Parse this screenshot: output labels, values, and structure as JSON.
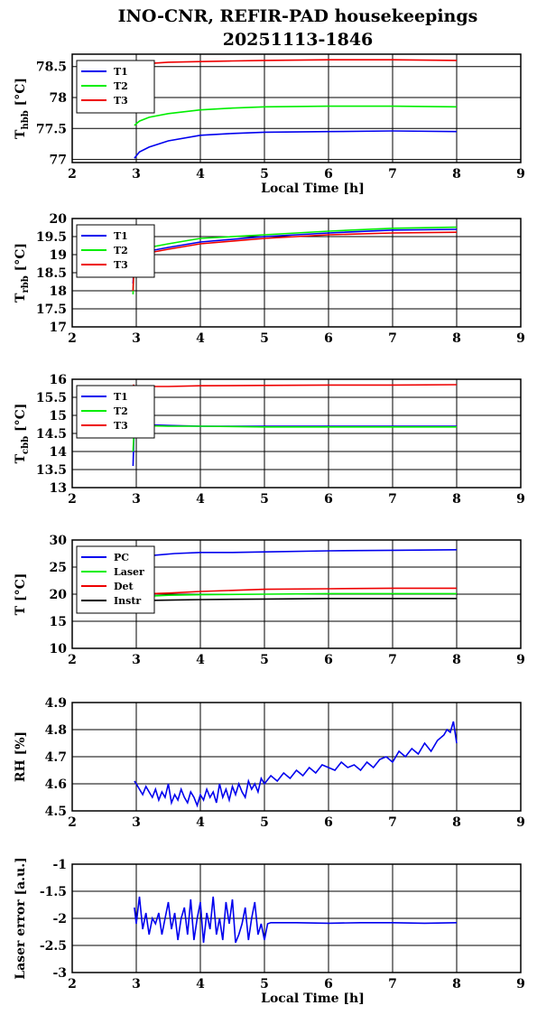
{
  "title_line1": "INO-CNR, REFIR-PAD housekeepings",
  "title_line2": "20251113-1846",
  "chart_data": [
    {
      "type": "line",
      "ylabel": "T",
      "ylabel_sub": "hbb",
      "ylabel_unit": "[°C]",
      "xlabel": "Local Time [h]",
      "xlim": [
        2,
        9
      ],
      "ylim": [
        76.95,
        78.7
      ],
      "yticks": [
        77,
        77.5,
        78,
        78.5
      ],
      "ytick_labels": [
        "77",
        "77.5",
        "78",
        "78.5"
      ],
      "xticks": [
        2,
        3,
        4,
        5,
        6,
        7,
        8,
        9
      ],
      "xtick_labels": [
        "2",
        "3",
        "4",
        "5",
        "6",
        "7",
        "8",
        "9"
      ],
      "legend": "top-left",
      "series": [
        {
          "name": "T1",
          "color": "#0000ee",
          "x": [
            2.97,
            3.05,
            3.2,
            3.5,
            4,
            4.5,
            5,
            6,
            7,
            8
          ],
          "y": [
            77.02,
            77.12,
            77.2,
            77.3,
            77.39,
            77.42,
            77.44,
            77.45,
            77.46,
            77.45
          ]
        },
        {
          "name": "T2",
          "color": "#00ee00",
          "x": [
            2.97,
            3.05,
            3.2,
            3.5,
            4,
            4.5,
            5,
            6,
            7,
            8
          ],
          "y": [
            77.55,
            77.62,
            77.68,
            77.74,
            77.8,
            77.83,
            77.85,
            77.86,
            77.86,
            77.85
          ]
        },
        {
          "name": "T3",
          "color": "#ee0000",
          "x": [
            2.97,
            3.05,
            3.2,
            3.5,
            4,
            4.5,
            5,
            6,
            7,
            8
          ],
          "y": [
            78.48,
            78.52,
            78.55,
            78.57,
            78.58,
            78.59,
            78.6,
            78.61,
            78.61,
            78.6
          ]
        }
      ]
    },
    {
      "type": "line",
      "ylabel": "T",
      "ylabel_sub": "rbb",
      "ylabel_unit": "[°C]",
      "xlabel": "",
      "xlim": [
        2,
        9
      ],
      "ylim": [
        17,
        20
      ],
      "yticks": [
        17,
        17.5,
        18,
        18.5,
        19,
        19.5,
        20
      ],
      "ytick_labels": [
        "17",
        "17.5",
        "18",
        "18.5",
        "19",
        "19.5",
        "20"
      ],
      "xticks": [
        2,
        3,
        4,
        5,
        6,
        7,
        8,
        9
      ],
      "xtick_labels": [
        "2",
        "3",
        "4",
        "5",
        "6",
        "7",
        "8",
        "9"
      ],
      "legend": "top-left",
      "series": [
        {
          "name": "T1",
          "color": "#0000ee",
          "x": [
            2.95,
            2.97,
            3.0,
            3.2,
            3.5,
            4,
            5,
            6,
            7,
            8
          ],
          "y": [
            18.2,
            19.0,
            19.05,
            19.1,
            19.2,
            19.35,
            19.5,
            19.6,
            19.68,
            19.7
          ]
        },
        {
          "name": "T2",
          "color": "#00ee00",
          "x": [
            2.95,
            2.97,
            3.0,
            3.2,
            3.5,
            4,
            5,
            6,
            7,
            8
          ],
          "y": [
            17.9,
            19.1,
            19.15,
            19.2,
            19.3,
            19.45,
            19.55,
            19.65,
            19.73,
            19.76
          ]
        },
        {
          "name": "T3",
          "color": "#ee0000",
          "x": [
            2.95,
            2.97,
            3.0,
            3.2,
            3.5,
            4,
            5,
            6,
            7,
            8
          ],
          "y": [
            18.0,
            19.0,
            19.02,
            19.05,
            19.15,
            19.3,
            19.45,
            19.55,
            19.6,
            19.62
          ]
        }
      ]
    },
    {
      "type": "line",
      "ylabel": "T",
      "ylabel_sub": "cbb",
      "ylabel_unit": "[°C]",
      "xlabel": "",
      "xlim": [
        2,
        9
      ],
      "ylim": [
        13,
        16
      ],
      "yticks": [
        13,
        13.5,
        14,
        14.5,
        15,
        15.5,
        16
      ],
      "ytick_labels": [
        "13",
        "13.5",
        "14",
        "14.5",
        "15",
        "15.5",
        "16"
      ],
      "xticks": [
        2,
        3,
        4,
        5,
        6,
        7,
        8,
        9
      ],
      "xtick_labels": [
        "2",
        "3",
        "4",
        "5",
        "6",
        "7",
        "8",
        "9"
      ],
      "legend": "top-left",
      "series": [
        {
          "name": "T1",
          "color": "#0000ee",
          "x": [
            2.95,
            2.97,
            3.0,
            3.5,
            4,
            5,
            6,
            7,
            8
          ],
          "y": [
            13.6,
            14.8,
            14.75,
            14.72,
            14.7,
            14.7,
            14.7,
            14.7,
            14.7
          ]
        },
        {
          "name": "T2",
          "color": "#00ee00",
          "x": [
            2.95,
            2.97,
            3.0,
            3.5,
            4,
            5,
            6,
            7,
            8
          ],
          "y": [
            14.0,
            14.75,
            14.72,
            14.7,
            14.7,
            14.68,
            14.68,
            14.68,
            14.68
          ]
        },
        {
          "name": "T3",
          "color": "#ee0000",
          "x": [
            2.95,
            2.97,
            3.0,
            3.5,
            4,
            5,
            6,
            7,
            8
          ],
          "y": [
            15.85,
            15.82,
            15.8,
            15.8,
            15.82,
            15.83,
            15.84,
            15.84,
            15.85
          ]
        }
      ]
    },
    {
      "type": "line",
      "ylabel": "T [°C]",
      "ylabel_sub": "",
      "ylabel_unit": "",
      "xlabel": "",
      "xlim": [
        2,
        9
      ],
      "ylim": [
        10,
        30
      ],
      "yticks": [
        10,
        15,
        20,
        25,
        30
      ],
      "ytick_labels": [
        "10",
        "15",
        "20",
        "25",
        "30"
      ],
      "xticks": [
        2,
        3,
        4,
        5,
        6,
        7,
        8,
        9
      ],
      "xtick_labels": [
        "2",
        "3",
        "4",
        "5",
        "6",
        "7",
        "8",
        "9"
      ],
      "legend": "top-left",
      "series": [
        {
          "name": "PC",
          "color": "#0000ee",
          "x": [
            2.97,
            3.1,
            3.3,
            3.6,
            4,
            4.5,
            5,
            6,
            7,
            8
          ],
          "y": [
            26.5,
            26.9,
            27.2,
            27.5,
            27.7,
            27.7,
            27.8,
            28.0,
            28.1,
            28.2
          ]
        },
        {
          "name": "Laser",
          "color": "#00ee00",
          "x": [
            2.97,
            3.5,
            4,
            5,
            6,
            7,
            8
          ],
          "y": [
            19.5,
            19.8,
            19.9,
            20.0,
            20.1,
            20.1,
            20.1
          ]
        },
        {
          "name": "Det",
          "color": "#ee0000",
          "x": [
            2.97,
            3.5,
            4,
            4.5,
            5,
            6,
            7,
            8
          ],
          "y": [
            20.0,
            20.2,
            20.5,
            20.7,
            20.9,
            21.0,
            21.1,
            21.1
          ]
        },
        {
          "name": "Instr",
          "color": "#000000",
          "x": [
            2.97,
            3.5,
            4,
            5,
            6,
            7,
            8
          ],
          "y": [
            18.8,
            18.9,
            19.0,
            19.1,
            19.2,
            19.2,
            19.2
          ]
        }
      ]
    },
    {
      "type": "line",
      "ylabel": "RH [%]",
      "ylabel_sub": "",
      "ylabel_unit": "",
      "xlabel": "",
      "xlim": [
        2,
        9
      ],
      "ylim": [
        4.5,
        4.9
      ],
      "yticks": [
        4.5,
        4.6,
        4.7,
        4.8,
        4.9
      ],
      "ytick_labels": [
        "4.5",
        "4.6",
        "4.7",
        "4.8",
        "4.9"
      ],
      "xticks": [
        2,
        3,
        4,
        5,
        6,
        7,
        8,
        9
      ],
      "xtick_labels": [
        "2",
        "3",
        "4",
        "5",
        "6",
        "7",
        "8",
        "9"
      ],
      "legend": "none",
      "series": [
        {
          "color": "#0000ee",
          "x": [
            2.97,
            3.0,
            3.05,
            3.1,
            3.15,
            3.2,
            3.25,
            3.3,
            3.35,
            3.4,
            3.45,
            3.5,
            3.55,
            3.6,
            3.65,
            3.7,
            3.75,
            3.8,
            3.85,
            3.9,
            3.95,
            4.0,
            4.05,
            4.1,
            4.15,
            4.2,
            4.25,
            4.3,
            4.35,
            4.4,
            4.45,
            4.5,
            4.55,
            4.6,
            4.65,
            4.7,
            4.75,
            4.8,
            4.85,
            4.9,
            4.95,
            5.0,
            5.1,
            5.2,
            5.3,
            5.4,
            5.5,
            5.6,
            5.7,
            5.8,
            5.9,
            6.0,
            6.1,
            6.2,
            6.3,
            6.4,
            6.5,
            6.6,
            6.7,
            6.8,
            6.9,
            7.0,
            7.1,
            7.2,
            7.3,
            7.4,
            7.5,
            7.6,
            7.7,
            7.8,
            7.85,
            7.9,
            7.95,
            8.0
          ],
          "y": [
            4.61,
            4.6,
            4.58,
            4.56,
            4.59,
            4.57,
            4.55,
            4.58,
            4.54,
            4.57,
            4.55,
            4.6,
            4.53,
            4.56,
            4.54,
            4.58,
            4.55,
            4.53,
            4.57,
            4.55,
            4.52,
            4.56,
            4.54,
            4.58,
            4.55,
            4.57,
            4.53,
            4.6,
            4.55,
            4.58,
            4.54,
            4.59,
            4.56,
            4.6,
            4.57,
            4.55,
            4.61,
            4.58,
            4.6,
            4.57,
            4.62,
            4.6,
            4.63,
            4.61,
            4.64,
            4.62,
            4.65,
            4.63,
            4.66,
            4.64,
            4.67,
            4.66,
            4.65,
            4.68,
            4.66,
            4.67,
            4.65,
            4.68,
            4.66,
            4.69,
            4.7,
            4.68,
            4.72,
            4.7,
            4.73,
            4.71,
            4.75,
            4.72,
            4.76,
            4.78,
            4.8,
            4.79,
            4.83,
            4.75
          ]
        }
      ]
    },
    {
      "type": "line",
      "ylabel": "Laser error [a.u.]",
      "ylabel_sub": "",
      "ylabel_unit": "",
      "xlabel": "Local Time [h]",
      "xlim": [
        2,
        9
      ],
      "ylim": [
        -3,
        -1
      ],
      "yticks": [
        -3,
        -2.5,
        -2,
        -1.5,
        -1
      ],
      "ytick_labels": [
        "-3",
        "-2.5",
        "-2",
        "-1.5",
        "-1"
      ],
      "xticks": [
        2,
        3,
        4,
        5,
        6,
        7,
        8,
        9
      ],
      "xtick_labels": [
        "2",
        "3",
        "4",
        "5",
        "6",
        "7",
        "8",
        "9"
      ],
      "legend": "none",
      "series": [
        {
          "color": "#0000ee",
          "x": [
            2.97,
            3.0,
            3.05,
            3.1,
            3.15,
            3.2,
            3.25,
            3.3,
            3.35,
            3.4,
            3.45,
            3.5,
            3.55,
            3.6,
            3.65,
            3.7,
            3.75,
            3.8,
            3.85,
            3.9,
            3.95,
            4.0,
            4.05,
            4.1,
            4.15,
            4.2,
            4.25,
            4.3,
            4.35,
            4.4,
            4.45,
            4.5,
            4.55,
            4.6,
            4.65,
            4.7,
            4.75,
            4.8,
            4.85,
            4.9,
            4.95,
            5.0,
            5.05,
            5.1,
            5.5,
            6.0,
            6.5,
            7.0,
            7.5,
            8.0
          ],
          "y": [
            -1.8,
            -2.1,
            -1.6,
            -2.2,
            -1.9,
            -2.3,
            -2.0,
            -2.1,
            -1.9,
            -2.3,
            -2.0,
            -1.7,
            -2.2,
            -1.9,
            -2.4,
            -2.0,
            -1.8,
            -2.3,
            -1.65,
            -2.4,
            -2.0,
            -1.7,
            -2.45,
            -1.9,
            -2.2,
            -1.6,
            -2.3,
            -2.0,
            -2.4,
            -1.7,
            -2.1,
            -1.65,
            -2.45,
            -2.3,
            -2.1,
            -1.8,
            -2.4,
            -2.0,
            -1.7,
            -2.3,
            -2.1,
            -2.4,
            -2.1,
            -2.08,
            -2.08,
            -2.09,
            -2.08,
            -2.08,
            -2.09,
            -2.08
          ]
        }
      ]
    }
  ]
}
